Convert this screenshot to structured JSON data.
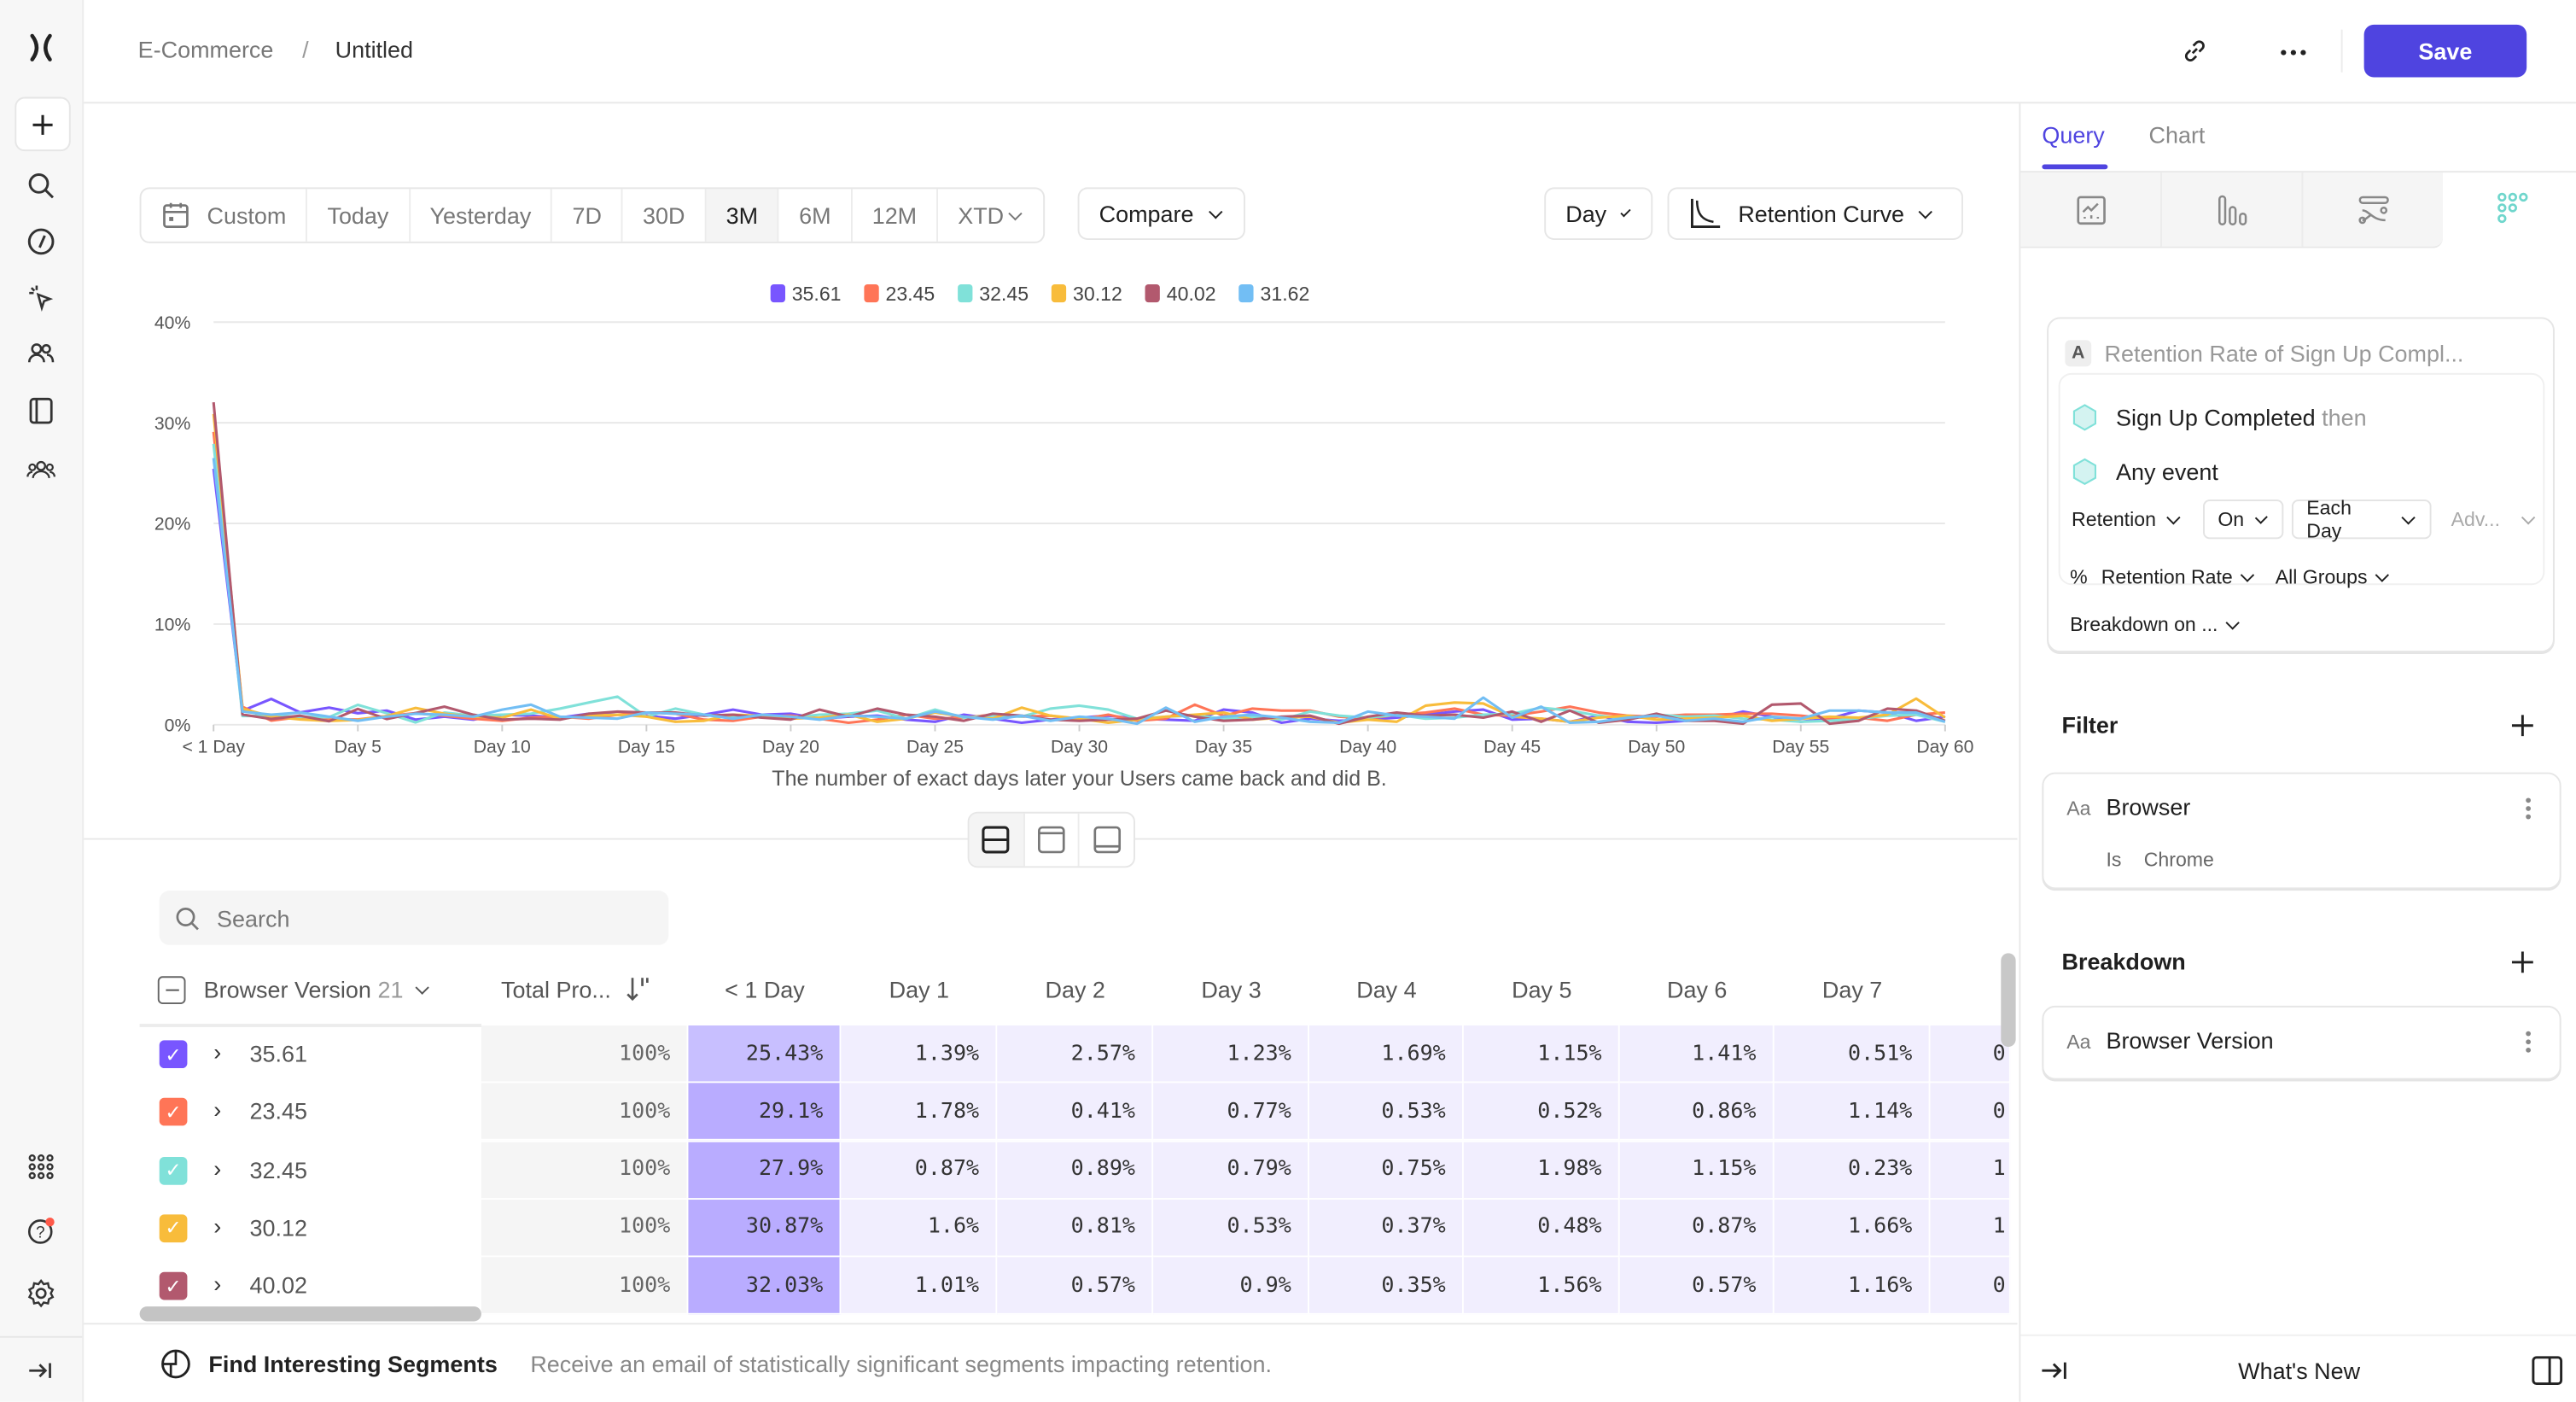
{
  "header": {
    "breadcrumb": [
      "E-Commerce",
      "Untitled"
    ],
    "breadcrumb_sep": "/",
    "save_label": "Save"
  },
  "sidebar": {
    "top_icons": [
      "logo-icon",
      "plus-icon",
      "search-icon",
      "compass-icon",
      "cursor-click-icon",
      "users-icon",
      "book-icon",
      "group-icon"
    ],
    "bottom_icons": [
      "grid-icon",
      "help-icon",
      "gear-icon",
      "expand-icon"
    ]
  },
  "toolbar": {
    "date_ranges": [
      "Custom",
      "Today",
      "Yesterday",
      "7D",
      "30D",
      "3M",
      "6M",
      "12M",
      "XTD"
    ],
    "active_range": "3M",
    "compare_label": "Compare",
    "interval_label": "Day",
    "chart_type_label": "Retention Curve"
  },
  "colors": {
    "accent": "#4f44e0",
    "series": [
      "#7856ff",
      "#ff7557",
      "#80e1d9",
      "#f8bc3b",
      "#b2596e",
      "#72bef4"
    ],
    "heat_strong": "#b9acff",
    "heat_medium": "#c8bfff",
    "heat_light": "#f1eefe"
  },
  "chart_data": {
    "type": "line",
    "xlabel": "The number of exact days later your Users came back and did B.",
    "ylabel": "",
    "x_tick_labels": [
      "< 1 Day",
      "Day 5",
      "Day 10",
      "Day 15",
      "Day 20",
      "Day 25",
      "Day 30",
      "Day 35",
      "Day 40",
      "Day 45",
      "Day 50",
      "Day 55",
      "Day 60"
    ],
    "x_range": [
      0,
      60
    ],
    "y_ticks": [
      "0%",
      "10%",
      "20%",
      "30%",
      "40%"
    ],
    "ylim": [
      0,
      40
    ],
    "grid": true,
    "legend_placement": "top-center",
    "series": [
      {
        "name": "35.61",
        "values": [
          25.43,
          1.39,
          2.57,
          1.23,
          1.69,
          1.15,
          1.41,
          0.51,
          0.8,
          0.5,
          1.0,
          0.9,
          0.7,
          1.1,
          1.0,
          0.9,
          0.6,
          1.0,
          1.5,
          1.0,
          1.1,
          0.6,
          0.8,
          0.9,
          0.5,
          0.3,
          1.0,
          0.6,
          0.2,
          0.5,
          0.7,
          0.9,
          0.6,
          0.5,
          0.4,
          1.5,
          1.2,
          0.2,
          0.6,
          0.4,
          0.5,
          0.7,
          1.0,
          1.3,
          1.5,
          0.5,
          0.6,
          0.3,
          0.9,
          0.3,
          0.2,
          0.4,
          0.6,
          1.3,
          0.8,
          0.3,
          0.6,
          1.4,
          1.2,
          0.4,
          0.8
        ]
      },
      {
        "name": "23.45",
        "values": [
          29.1,
          1.78,
          0.41,
          0.77,
          0.53,
          0.52,
          0.86,
          1.14,
          0.9,
          0.6,
          0.4,
          0.7,
          0.8,
          0.6,
          1.0,
          1.2,
          1.1,
          0.5,
          0.4,
          0.8,
          0.9,
          0.6,
          0.2,
          0.5,
          1.0,
          0.6,
          0.7,
          1.0,
          0.8,
          0.9,
          0.5,
          1.0,
          0.4,
          0.6,
          2.0,
          0.9,
          1.6,
          1.4,
          1.4,
          0.8,
          0.6,
          1.0,
          1.2,
          1.6,
          1.0,
          0.9,
          1.3,
          1.8,
          1.2,
          0.9,
          0.8,
          1.0,
          1.0,
          1.1,
          1.1,
          0.9,
          0.6,
          0.7,
          0.4,
          1.0,
          1.2
        ]
      },
      {
        "name": "32.45",
        "values": [
          27.9,
          0.87,
          0.89,
          0.79,
          0.75,
          1.98,
          1.15,
          0.23,
          1.2,
          0.9,
          1.0,
          1.1,
          1.6,
          2.2,
          2.8,
          0.8,
          1.6,
          1.0,
          0.8,
          0.9,
          0.7,
          1.0,
          1.1,
          1.4,
          0.6,
          1.5,
          0.7,
          0.9,
          0.8,
          1.6,
          1.9,
          1.5,
          0.6,
          0.8,
          0.9,
          0.6,
          0.8,
          0.5,
          1.3,
          0.9,
          0.7,
          1.0,
          0.6,
          0.7,
          1.0,
          1.1,
          1.7,
          1.4,
          0.9,
          0.6,
          1.0,
          0.8,
          0.9,
          0.6,
          0.5,
          0.3,
          0.4,
          0.6,
          0.9,
          1.0,
          0.3
        ]
      },
      {
        "name": "30.12",
        "values": [
          30.87,
          1.6,
          0.81,
          0.53,
          0.37,
          0.48,
          0.87,
          1.66,
          1.1,
          0.8,
          0.7,
          1.5,
          0.6,
          0.9,
          1.0,
          0.8,
          0.3,
          0.4,
          1.0,
          0.9,
          0.6,
          0.7,
          1.0,
          0.3,
          0.6,
          1.2,
          0.8,
          0.6,
          1.7,
          0.9,
          0.6,
          0.2,
          0.5,
          0.8,
          1.0,
          1.2,
          0.5,
          0.7,
          0.8,
          0.2,
          0.5,
          0.3,
          1.9,
          2.2,
          2.1,
          0.8,
          0.6,
          0.3,
          0.7,
          0.9,
          0.5,
          0.6,
          0.7,
          0.9,
          0.4,
          0.6,
          0.8,
          0.7,
          1.0,
          2.6,
          0.7
        ]
      },
      {
        "name": "40.02",
        "values": [
          32.03,
          1.01,
          0.57,
          0.9,
          0.35,
          1.56,
          0.57,
          1.16,
          1.8,
          1.0,
          0.5,
          0.6,
          0.5,
          1.1,
          1.3,
          1.2,
          1.2,
          0.9,
          1.0,
          0.7,
          0.5,
          1.5,
          0.8,
          1.6,
          1.0,
          0.8,
          0.4,
          1.1,
          0.9,
          0.5,
          0.4,
          0.5,
          0.6,
          1.4,
          0.8,
          0.4,
          0.5,
          0.8,
          0.9,
          0.1,
          0.8,
          1.2,
          0.9,
          1.0,
          0.7,
          1.3,
          0.3,
          1.4,
          0.2,
          0.5,
          1.1,
          0.4,
          0.4,
          0.1,
          2.0,
          2.1,
          0.1,
          0.4,
          1.6,
          1.4,
          0.4
        ]
      },
      {
        "name": "31.62",
        "values": [
          26.5,
          1.3,
          1.0,
          1.2,
          0.8,
          0.4,
          0.8,
          1.1,
          1.0,
          0.8,
          1.5,
          2.0,
          0.8,
          0.7,
          0.6,
          1.2,
          1.1,
          1.0,
          0.6,
          1.0,
          0.8,
          0.5,
          0.9,
          0.8,
          0.6,
          1.3,
          0.8,
          0.5,
          0.9,
          0.4,
          0.8,
          0.6,
          0.1,
          1.7,
          0.3,
          0.8,
          1.0,
          0.7,
          0.3,
          0.2,
          1.3,
          0.9,
          0.8,
          0.6,
          2.7,
          0.7,
          1.8,
          0.2,
          0.3,
          0.7,
          0.9,
          0.4,
          0.6,
          0.3,
          0.8,
          0.6,
          1.4,
          1.4,
          1.2,
          1.2,
          0.3
        ]
      }
    ]
  },
  "table": {
    "search_placeholder": "Search",
    "group_header": "Browser Version",
    "group_count": "21",
    "total_header": "Total Pro...",
    "day_headers": [
      "< 1 Day",
      "Day 1",
      "Day 2",
      "Day 3",
      "Day 4",
      "Day 5",
      "Day 6",
      "Day 7"
    ],
    "rows": [
      {
        "label": "35.61",
        "color": "#7856ff",
        "checked": true,
        "total": "100%",
        "cells": [
          "25.43%",
          "1.39%",
          "2.57%",
          "1.23%",
          "1.69%",
          "1.15%",
          "1.41%",
          "0.51%"
        ],
        "clipped": "0"
      },
      {
        "label": "23.45",
        "color": "#ff7557",
        "checked": true,
        "total": "100%",
        "cells": [
          "29.1%",
          "1.78%",
          "0.41%",
          "0.77%",
          "0.53%",
          "0.52%",
          "0.86%",
          "1.14%"
        ],
        "clipped": "0"
      },
      {
        "label": "32.45",
        "color": "#80e1d9",
        "checked": true,
        "total": "100%",
        "cells": [
          "27.9%",
          "0.87%",
          "0.89%",
          "0.79%",
          "0.75%",
          "1.98%",
          "1.15%",
          "0.23%"
        ],
        "clipped": "1"
      },
      {
        "label": "30.12",
        "color": "#f8bc3b",
        "checked": true,
        "total": "100%",
        "cells": [
          "30.87%",
          "1.6%",
          "0.81%",
          "0.53%",
          "0.37%",
          "0.48%",
          "0.87%",
          "1.66%"
        ],
        "clipped": "1"
      },
      {
        "label": "40.02",
        "color": "#b2596e",
        "checked": true,
        "total": "100%",
        "cells": [
          "32.03%",
          "1.01%",
          "0.57%",
          "0.9%",
          "0.35%",
          "1.56%",
          "0.57%",
          "1.16%"
        ],
        "clipped": "0"
      }
    ]
  },
  "footer": {
    "title": "Find Interesting Segments",
    "description": "Receive an email of statistically significant segments impacting retention."
  },
  "right_panel": {
    "tabs": [
      "Query",
      "Chart"
    ],
    "active_tab": "Query",
    "report_types": [
      "insights-icon",
      "funnels-icon",
      "flows-icon",
      "retention-icon"
    ],
    "metric": {
      "letter": "A",
      "title": "Retention Rate of Sign Up Compl...",
      "event_a": "Sign Up Completed",
      "then": "then",
      "event_b": "Any event",
      "retention_label": "Retention",
      "on_label": "On",
      "each_day_label": "Each Day",
      "advanced_label": "Adv...",
      "percent_symbol": "%",
      "measure_label": "Retention Rate",
      "groups_label": "All Groups",
      "breakdown_on_label": "Breakdown on ..."
    },
    "filter": {
      "heading": "Filter",
      "type_badge": "Aa",
      "property": "Browser",
      "operator": "Is",
      "value": "Chrome"
    },
    "breakdown": {
      "heading": "Breakdown",
      "type_badge": "Aa",
      "property": "Browser Version"
    },
    "footer_label": "What's New"
  }
}
